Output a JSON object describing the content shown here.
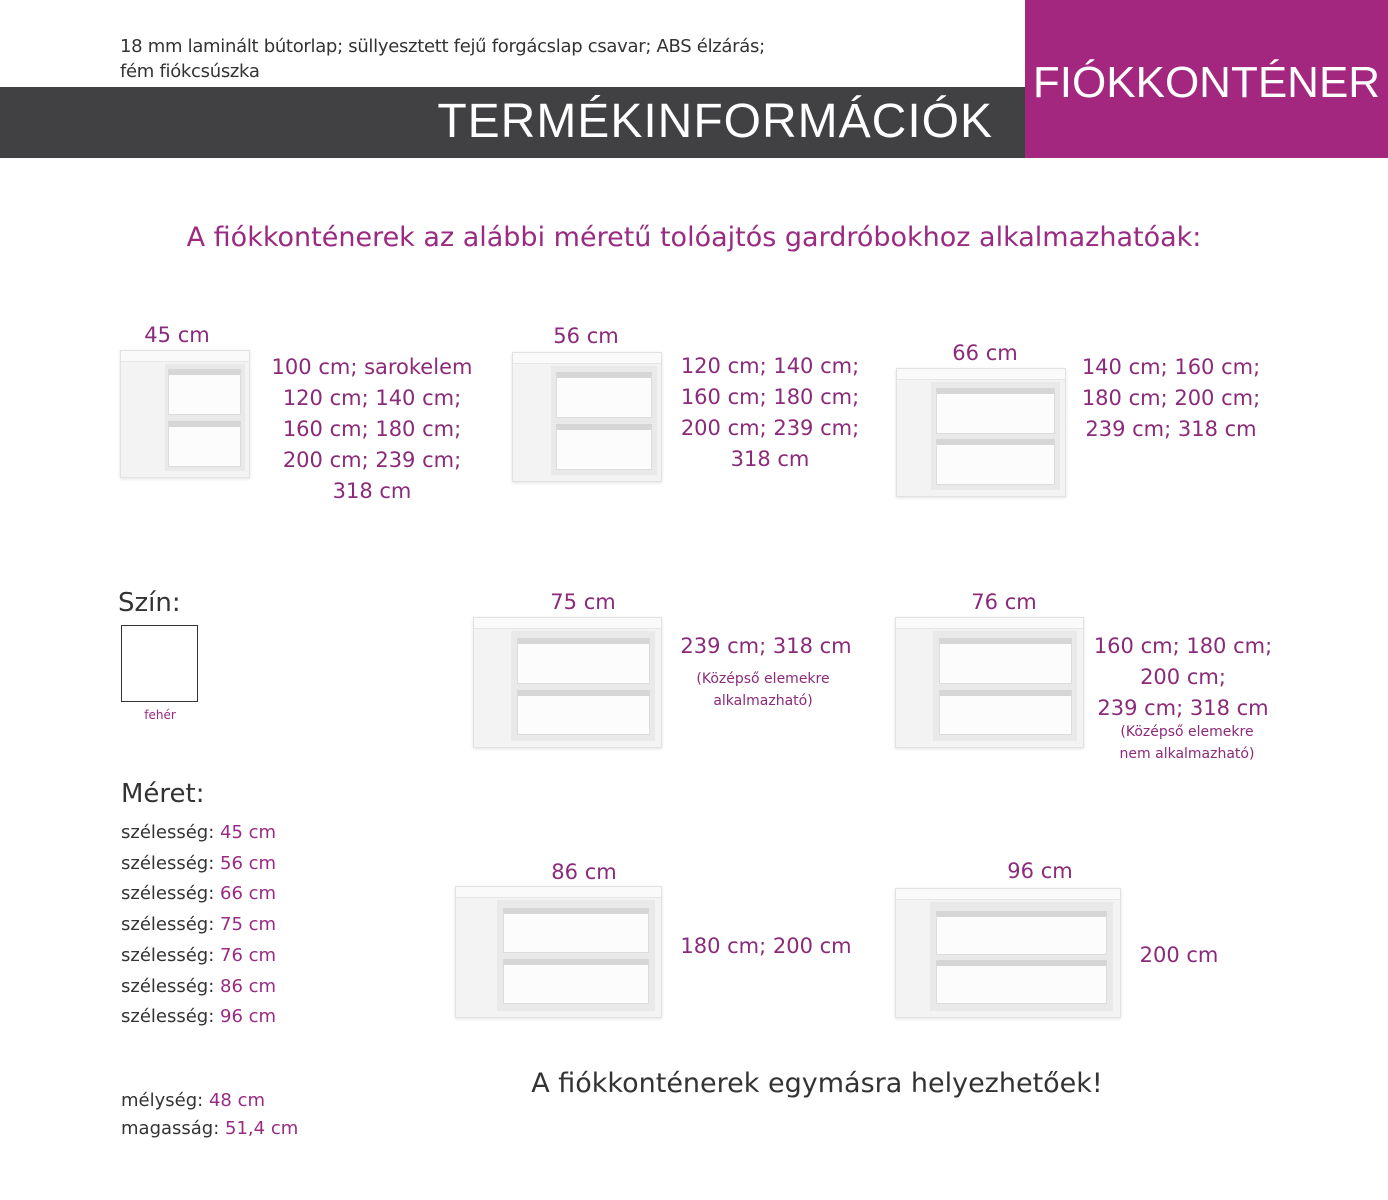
{
  "header": {
    "spec_line1": "18 mm laminált bútorlap; süllyesztett fejű forgácslap csavar; ABS élzárás;",
    "spec_line2": "fém fiókcsúszka",
    "title": "TERMÉKINFORMÁCIÓK",
    "product": "FIÓKKONTÉNER",
    "colors": {
      "bar": "#414042",
      "accent": "#a3277f",
      "text_accent": "#9a2a82"
    }
  },
  "subtitle": "A fiókkonténerek az alábbi méretű tolóajtós gardróbokhoz alkalmazhatóak:",
  "items": [
    {
      "width": "45 cm",
      "lines": [
        "100 cm; sarokelem",
        "120 cm; 140 cm;",
        "160 cm; 180 cm;",
        "200 cm; 239 cm;",
        "318 cm"
      ]
    },
    {
      "width": "56 cm",
      "lines": [
        "120 cm; 140 cm;",
        "160 cm; 180 cm;",
        "200 cm; 239 cm;",
        "318 cm"
      ]
    },
    {
      "width": "66 cm",
      "lines": [
        "140 cm; 160 cm;",
        "180 cm; 200 cm;",
        "239 cm; 318 cm"
      ]
    },
    {
      "width": "75 cm",
      "lines": [
        "239 cm; 318 cm"
      ],
      "notes": [
        "(Középső elemekre",
        "alkalmazható)"
      ]
    },
    {
      "width": "76 cm",
      "lines": [
        "160 cm; 180 cm;",
        "200 cm;",
        "239 cm; 318 cm"
      ],
      "notes": [
        "(Középső elemekre",
        "nem alkalmazható)"
      ]
    },
    {
      "width": "86 cm",
      "lines": [
        "180 cm; 200 cm"
      ]
    },
    {
      "width": "96 cm",
      "lines": [
        "200 cm"
      ]
    }
  ],
  "color_section": {
    "heading": "Szín:",
    "swatch_label": "fehér",
    "swatch_color": "#ffffff"
  },
  "size_section": {
    "heading": "Méret:",
    "width_label": "szélesség: ",
    "widths": [
      "45 cm",
      "56 cm",
      "66 cm",
      "75 cm",
      "76 cm",
      "86 cm",
      "96 cm"
    ],
    "depth_label": "mélység: ",
    "depth": "48 cm",
    "height_label": "magasság: ",
    "height": "51,4 cm"
  },
  "footer": "A fiókkonténerek egymásra helyezhetőek!"
}
